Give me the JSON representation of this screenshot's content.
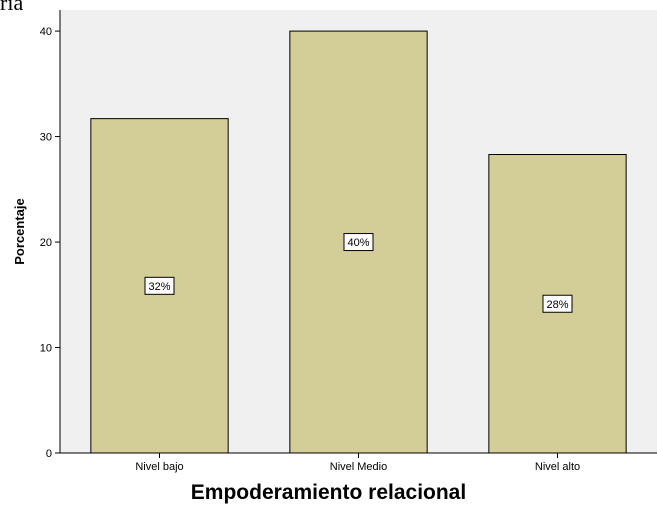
{
  "page": {
    "top_fragment": "ría"
  },
  "chart_data": {
    "type": "bar",
    "categories": [
      "Nivel bajo",
      "Nivel Medio",
      "Nivel alto"
    ],
    "values": [
      31.7,
      40.0,
      28.3
    ],
    "data_labels": [
      "32%",
      "40%",
      "28%"
    ],
    "xlabel": "Empoderamiento relacional",
    "ylabel": "Porcentaje",
    "ylim": [
      0,
      42
    ],
    "yticks": [
      0,
      10,
      20,
      30,
      40
    ],
    "ytick_labels": [
      "0",
      "10",
      "20",
      "30",
      "40"
    ],
    "colors": {
      "plot_background": "#f0f0f0",
      "bar_fill": "#d3ce97",
      "bar_stroke": "#000000",
      "label_box_fill": "#ffffff"
    },
    "grid": false,
    "legend": "none"
  }
}
